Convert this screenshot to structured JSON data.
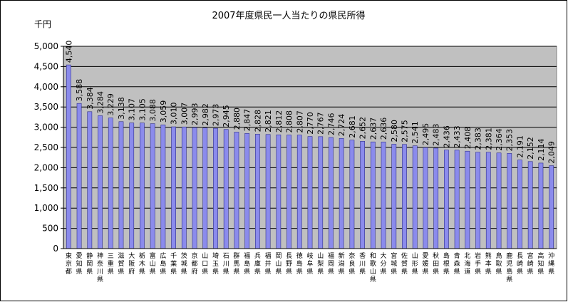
{
  "chart_data": {
    "type": "bar",
    "title": "2007年度県民一人当たりの県民所得",
    "ylabel": "千円",
    "xlabel": "",
    "ylim": [
      0,
      5000
    ],
    "yticks": [
      "0",
      "500",
      "1,000",
      "1,500",
      "2,000",
      "2,500",
      "3,000",
      "3,500",
      "4,000",
      "4,500",
      "5,000"
    ],
    "grid": true,
    "legend": "none",
    "colors": {
      "bar": "#8b8bec",
      "bar_edge": "#2e2e8a",
      "plot_bg": "#c0c0c0",
      "grid": "#000000"
    },
    "categories": [
      "東京都",
      "愛知県",
      "静岡県",
      "神奈川県",
      "三重県",
      "滋賀県",
      "大阪府",
      "栃木県",
      "富山県",
      "広島県",
      "千葉県",
      "茨城県",
      "京都府",
      "山口県",
      "埼玉県",
      "石川県",
      "群馬県",
      "福島県",
      "兵庫県",
      "福井県",
      "岡山県",
      "長野県",
      "徳島県",
      "岐阜県",
      "山梨県",
      "福岡県",
      "新潟県",
      "奈良県",
      "香川県",
      "和歌山県",
      "大分県",
      "宮城県",
      "佐賀県",
      "山形県",
      "愛媛県",
      "秋田県",
      "島根県",
      "青森県",
      "北海道",
      "岩手県",
      "熊本県",
      "鳥取県",
      "鹿児島県",
      "長崎県",
      "宮崎県",
      "高知県",
      "沖縄県"
    ],
    "values": [
      4540,
      3588,
      3384,
      3284,
      3229,
      3138,
      3107,
      3105,
      3088,
      3059,
      3010,
      3007,
      2993,
      2982,
      2973,
      2945,
      2880,
      2847,
      2828,
      2821,
      2812,
      2808,
      2807,
      2770,
      2767,
      2746,
      2724,
      2681,
      2652,
      2637,
      2636,
      2580,
      2575,
      2541,
      2495,
      2483,
      2436,
      2433,
      2408,
      2383,
      2381,
      2364,
      2353,
      2191,
      2152,
      2114,
      2049
    ],
    "value_labels": [
      "4,540",
      "3,588",
      "3,384",
      "3,284",
      "3,229",
      "3,138",
      "3,107",
      "3,105",
      "3,088",
      "3,059",
      "3,010",
      "3,007",
      "2,993",
      "2,982",
      "2,973",
      "2,945",
      "2,880",
      "2,847",
      "2,828",
      "2,821",
      "2,812",
      "2,808",
      "2,807",
      "2,770",
      "2,767",
      "2,746",
      "2,724",
      "2,681",
      "2,652",
      "2,637",
      "2,636",
      "2,580",
      "2,575",
      "2,541",
      "2,495",
      "2,483",
      "2,436",
      "2,433",
      "2,408",
      "2,383",
      "2,381",
      "2,364",
      "2,353",
      "2,191",
      "2,152",
      "2,114",
      "2,049"
    ]
  }
}
